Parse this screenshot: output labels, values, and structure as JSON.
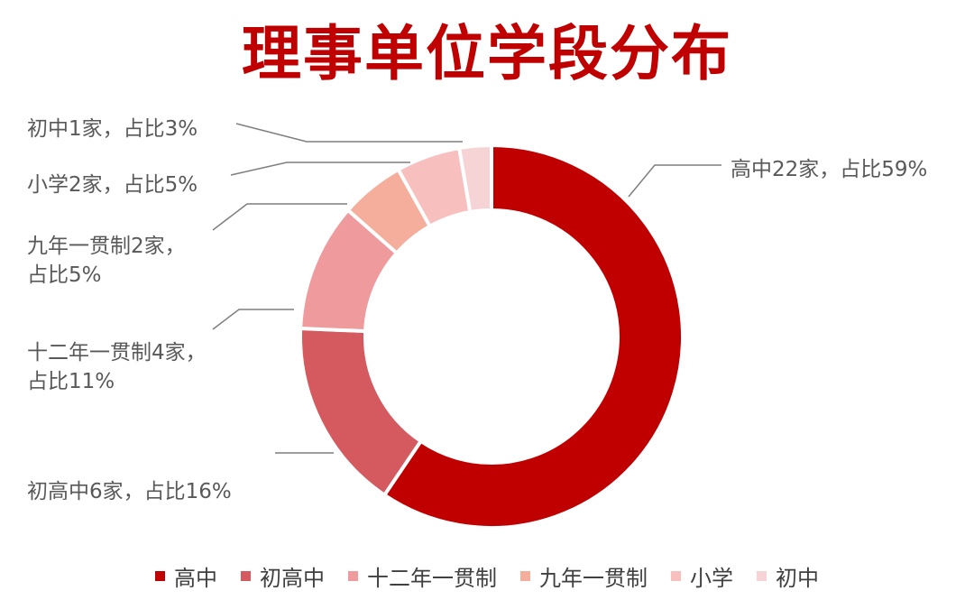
{
  "chart_data": {
    "type": "pie",
    "title": "理事单位学段分布",
    "categories": [
      "高中",
      "初高中",
      "十二年一贯制",
      "九年一贯制",
      "小学",
      "初中"
    ],
    "values": [
      22,
      6,
      4,
      2,
      2,
      1
    ],
    "colors": [
      "#c00000",
      "#d55a5f",
      "#ef9a9d",
      "#f6ae9c",
      "#f8bfbf",
      "#f6d3d5"
    ],
    "data_labels": [
      [
        "高中22家，占比59%"
      ],
      [
        "初高中6家，占比16%"
      ],
      [
        "十二年一贯制4家，",
        "占比11%"
      ],
      [
        "九年一贯制2家，",
        "占比5%"
      ],
      [
        "小学2家，占比5%"
      ],
      [
        "初中1家，占比3%"
      ]
    ],
    "donut": true,
    "legend_position": "bottom"
  }
}
